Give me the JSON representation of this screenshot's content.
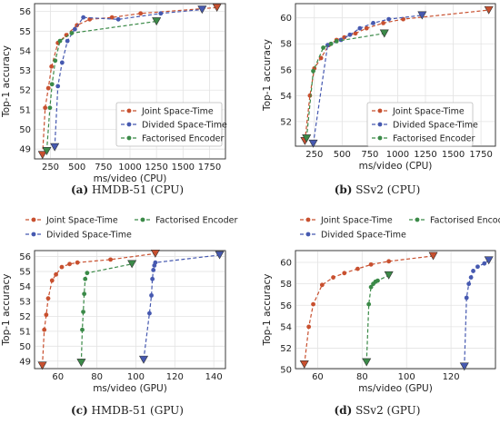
{
  "colors": {
    "joint": "#c8502f",
    "divided": "#4659b0",
    "factorised": "#3b8a48"
  },
  "panel_captions": [
    {
      "letter": "(a)",
      "text": " HMDB-51 (CPU)"
    },
    {
      "letter": "(b)",
      "text": " SSv2 (CPU)"
    },
    {
      "letter": "(c)",
      "text": " HMDB-51 (GPU)"
    },
    {
      "letter": "(d)",
      "text": " SSv2 (GPU)"
    }
  ],
  "chart_data": [
    {
      "type": "line",
      "xlabel": "ms/video (CPU)",
      "ylabel": "Top-1 accuracy",
      "xlim": [
        100,
        1900
      ],
      "ylim": [
        48.5,
        56.4
      ],
      "xticks": [
        250,
        500,
        750,
        1000,
        1250,
        1500,
        1750
      ],
      "yticks": [
        49,
        50,
        51,
        52,
        53,
        54,
        55,
        56
      ],
      "grid": true,
      "legend": {
        "position": "bottom-right",
        "entries": [
          "Joint Space-Time",
          "Divided Space-Time",
          "Factorised Encoder"
        ]
      },
      "series": [
        {
          "name": "Joint Space-Time",
          "x": [
            175,
            200,
            230,
            260,
            320,
            400,
            500,
            620,
            830,
            1100,
            1820
          ],
          "y": [
            48.7,
            51.1,
            52.1,
            53.2,
            54.4,
            54.8,
            55.3,
            55.6,
            55.7,
            55.9,
            56.2
          ]
        },
        {
          "name": "Divided Space-Time",
          "x": [
            290,
            320,
            360,
            410,
            480,
            560,
            890,
            1290,
            1680
          ],
          "y": [
            49.1,
            52.2,
            53.4,
            54.5,
            55.1,
            55.7,
            55.6,
            55.9,
            56.1
          ]
        },
        {
          "name": "Factorised Encoder",
          "x": [
            215,
            245,
            265,
            295,
            340,
            450,
            1250
          ],
          "y": [
            48.9,
            51.1,
            52.3,
            53.5,
            54.5,
            54.9,
            55.5
          ]
        }
      ]
    },
    {
      "type": "line",
      "xlabel": "ms/video (CPU)",
      "ylabel": "Top-1 accuracy",
      "xlim": [
        80,
        1880
      ],
      "ylim": [
        50.1,
        61.1
      ],
      "xticks": [
        250,
        500,
        750,
        1000,
        1250,
        1500,
        1750
      ],
      "yticks": [
        52,
        54,
        56,
        58,
        60
      ],
      "grid": true,
      "legend": {
        "position": "bottom-right",
        "entries": [
          "Joint Space-Time",
          "Divided Space-Time",
          "Factorised Encoder"
        ]
      },
      "series": [
        {
          "name": "Joint Space-Time",
          "x": [
            165,
            210,
            250,
            310,
            380,
            450,
            520,
            620,
            720,
            870,
            1050,
            1820
          ],
          "y": [
            50.5,
            54.0,
            56.1,
            56.9,
            57.9,
            58.3,
            58.5,
            58.8,
            59.2,
            59.6,
            59.9,
            60.6
          ]
        },
        {
          "name": "Divided Space-Time",
          "x": [
            240,
            370,
            490,
            570,
            660,
            780,
            920,
            1220
          ],
          "y": [
            50.3,
            57.9,
            58.3,
            58.7,
            59.2,
            59.6,
            59.9,
            60.2
          ]
        },
        {
          "name": "Factorised Encoder",
          "x": [
            180,
            240,
            330,
            400,
            450,
            880
          ],
          "y": [
            50.7,
            55.9,
            57.7,
            58.0,
            58.2,
            58.8
          ]
        }
      ]
    },
    {
      "type": "line",
      "xlabel": "ms/video (GPU)",
      "ylabel": "Top-1 accuracy",
      "xlim": [
        48,
        146
      ],
      "ylim": [
        48.5,
        56.4
      ],
      "xticks": [
        60,
        80,
        100,
        120,
        140
      ],
      "yticks": [
        49,
        50,
        51,
        52,
        53,
        54,
        55,
        56
      ],
      "grid": true,
      "legend": {
        "position": "top",
        "entries": [
          "Joint Space-Time",
          "Factorised Encoder",
          "Divided Space-Time"
        ]
      },
      "series": [
        {
          "name": "Joint Space-Time",
          "x": [
            52,
            53,
            54,
            55,
            57,
            59,
            62,
            66,
            70,
            87,
            110
          ],
          "y": [
            48.7,
            51.1,
            52.1,
            53.2,
            54.4,
            54.8,
            55.3,
            55.5,
            55.6,
            55.8,
            56.2
          ]
        },
        {
          "name": "Factorised Encoder",
          "x": [
            72,
            72.5,
            73,
            73.5,
            74,
            75,
            98
          ],
          "y": [
            48.9,
            51.1,
            52.3,
            53.5,
            54.5,
            54.9,
            55.5
          ]
        },
        {
          "name": "Divided Space-Time",
          "x": [
            104,
            107,
            108,
            108.5,
            109,
            109.5,
            110,
            143
          ],
          "y": [
            49.1,
            52.2,
            53.4,
            54.5,
            55.1,
            55.4,
            55.6,
            56.1
          ]
        }
      ]
    },
    {
      "type": "line",
      "xlabel": "ms/video (GPU)",
      "ylabel": "Top-1 accuracy",
      "xlim": [
        50,
        140
      ],
      "ylim": [
        50.1,
        61.1
      ],
      "xticks": [
        60,
        80,
        100,
        120
      ],
      "yticks": [
        50,
        52,
        54,
        56,
        58,
        60
      ],
      "grid": true,
      "legend": {
        "position": "top",
        "entries": [
          "Joint Space-Time",
          "Factorised Encoder",
          "Divided Space-Time"
        ]
      },
      "series": [
        {
          "name": "Joint Space-Time",
          "x": [
            54,
            56,
            58,
            62,
            67,
            72,
            78,
            84,
            92,
            112
          ],
          "y": [
            50.5,
            54.0,
            56.1,
            57.9,
            58.6,
            59.0,
            59.4,
            59.8,
            60.1,
            60.6
          ]
        },
        {
          "name": "Factorised Encoder",
          "x": [
            82,
            83,
            84,
            85,
            86,
            87,
            92
          ],
          "y": [
            50.7,
            56.1,
            57.7,
            58.0,
            58.2,
            58.3,
            58.8
          ]
        },
        {
          "name": "Divided Space-Time",
          "x": [
            126,
            127,
            128,
            129,
            130,
            132,
            135,
            137
          ],
          "y": [
            50.3,
            56.7,
            58.0,
            58.6,
            59.2,
            59.6,
            59.9,
            60.2
          ]
        }
      ]
    }
  ]
}
